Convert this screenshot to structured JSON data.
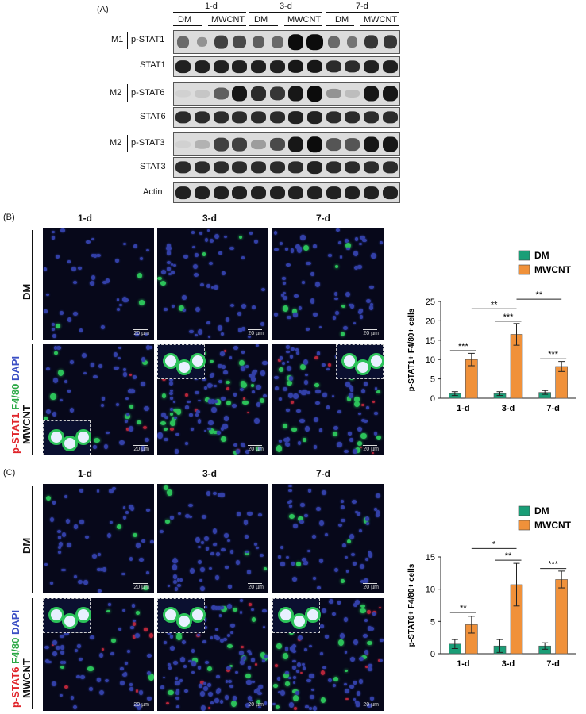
{
  "panelA": {
    "label": "(A)",
    "timepoints": [
      "1-d",
      "3-d",
      "7-d"
    ],
    "groups": [
      "DM",
      "MWCNT",
      "DM",
      "MWCNT",
      "DM",
      "MWCNT"
    ],
    "rows": [
      {
        "marker": "M1",
        "name": "p-STAT1"
      },
      {
        "marker": "",
        "name": "STAT1"
      },
      {
        "marker": "M2",
        "name": "p-STAT6"
      },
      {
        "marker": "",
        "name": "STAT6"
      },
      {
        "marker": "M2",
        "name": "p-STAT3"
      },
      {
        "marker": "",
        "name": "STAT3"
      },
      {
        "marker": "",
        "name": "Actin"
      }
    ]
  },
  "panelB": {
    "label": "(B)",
    "cols": [
      "1-d",
      "3-d",
      "7-d"
    ],
    "rowLabels": [
      "DM",
      "MWCNT"
    ],
    "stain": {
      "a": "p-STAT1",
      "b": "F4/80",
      "c": "DAPI"
    },
    "scale": "20 µm"
  },
  "panelC": {
    "label": "(C)",
    "cols": [
      "1-d",
      "3-d",
      "7-d"
    ],
    "rowLabels": [
      "DM",
      "MWCNT"
    ],
    "stain": {
      "a": "p-STAT6",
      "b": "F4/80",
      "c": "DAPI"
    },
    "scale": "20 µm"
  },
  "colors": {
    "dm": "#1a9e77",
    "mwcnt": "#f0913a",
    "red": "#e0242a",
    "green": "#2aa845",
    "blue": "#3b4fc4"
  },
  "chart_data": [
    {
      "type": "bar",
      "categories": [
        "1-d",
        "3-d",
        "7-d"
      ],
      "series": [
        {
          "name": "DM",
          "values": [
            1.2,
            1.2,
            1.5
          ],
          "errors": [
            0.5,
            0.5,
            0.5
          ]
        },
        {
          "name": "MWCNT",
          "values": [
            10.0,
            16.5,
            8.2
          ],
          "errors": [
            1.6,
            2.8,
            1.3
          ]
        }
      ],
      "ylabel": "p-STAT1+ F4/80+ cells",
      "ylim": [
        0,
        25
      ],
      "yticks": [
        0,
        5,
        10,
        15,
        20,
        25
      ],
      "legend": "top-right",
      "significance": [
        {
          "between": "DM vs MWCNT 1-d",
          "mark": "***"
        },
        {
          "between": "DM vs MWCNT 3-d",
          "mark": "***"
        },
        {
          "between": "DM vs MWCNT 7-d",
          "mark": "***"
        },
        {
          "between": "MWCNT 1-d vs 3-d",
          "mark": "**"
        },
        {
          "between": "MWCNT 3-d vs 7-d",
          "mark": "**"
        }
      ]
    },
    {
      "type": "bar",
      "categories": [
        "1-d",
        "3-d",
        "7-d"
      ],
      "series": [
        {
          "name": "DM",
          "values": [
            1.5,
            1.2,
            1.2
          ],
          "errors": [
            0.7,
            1.0,
            0.5
          ]
        },
        {
          "name": "MWCNT",
          "values": [
            4.5,
            10.7,
            11.5
          ],
          "errors": [
            1.3,
            3.3,
            1.3
          ]
        }
      ],
      "ylabel": "p-STAT6+ F4/80+ cells",
      "ylim": [
        0,
        15
      ],
      "yticks": [
        0,
        5,
        10,
        15
      ],
      "legend": "top-right",
      "significance": [
        {
          "between": "DM vs MWCNT 1-d",
          "mark": "**"
        },
        {
          "between": "DM vs MWCNT 3-d",
          "mark": "**"
        },
        {
          "between": "DM vs MWCNT 7-d",
          "mark": "***"
        },
        {
          "between": "MWCNT 1-d vs 3-d",
          "mark": "*"
        }
      ]
    }
  ]
}
